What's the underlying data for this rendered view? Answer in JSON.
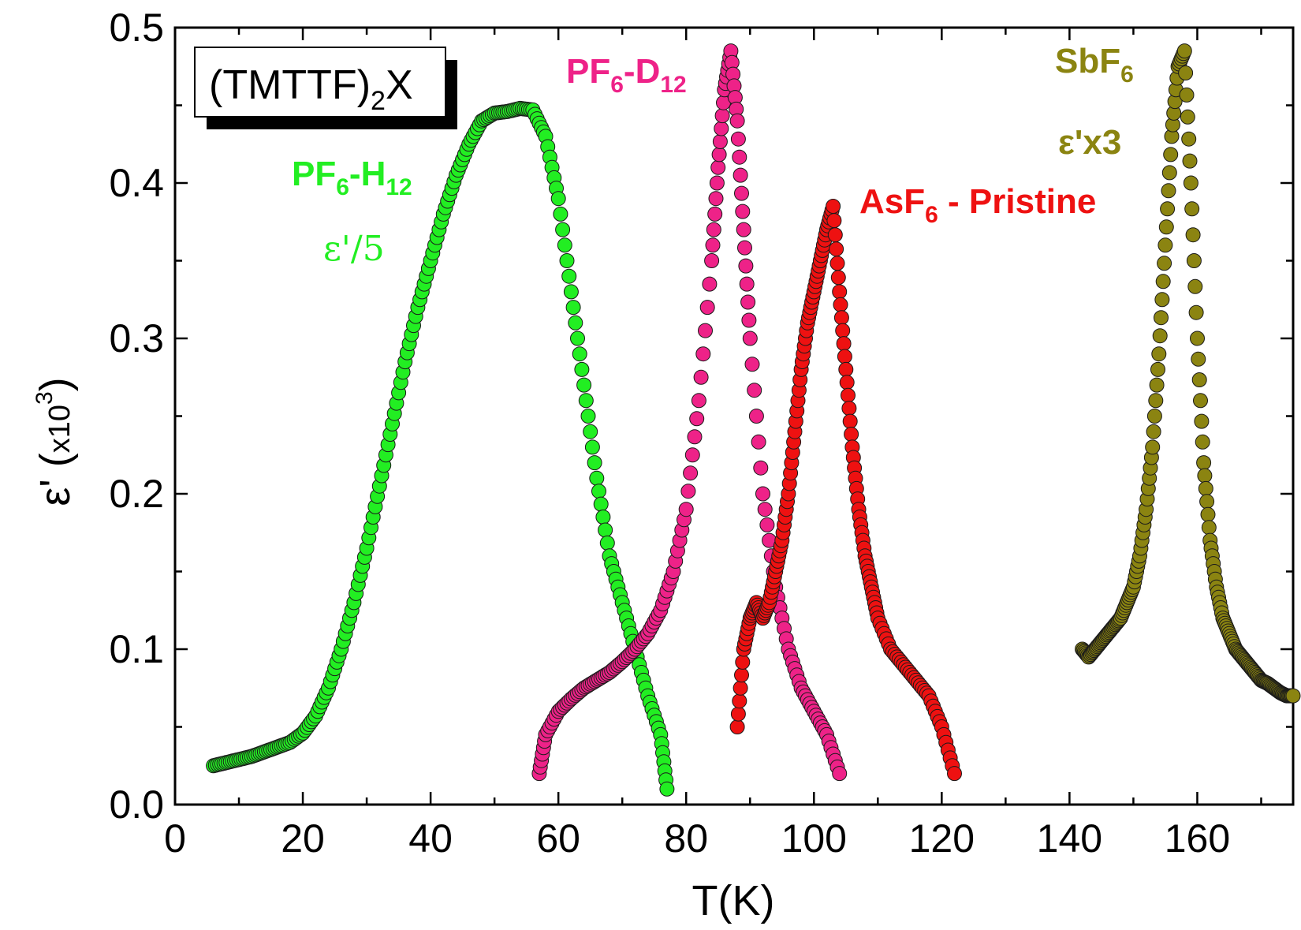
{
  "chart_data": {
    "type": "scatter",
    "xlabel": "T(K)",
    "ylabel_main": "ε' (",
    "ylabel_mult": "x10",
    "ylabel_exp": "3",
    "ylabel_close": ")",
    "xlim": [
      0,
      175
    ],
    "ylim": [
      0,
      0.5
    ],
    "xticks": [
      0,
      20,
      40,
      60,
      80,
      100,
      120,
      140,
      160
    ],
    "xtick_labels": [
      "0",
      "20",
      "40",
      "60",
      "80",
      "100",
      "120",
      "140",
      "160"
    ],
    "yticks": [
      0.0,
      0.1,
      0.2,
      0.3,
      0.4,
      0.5
    ],
    "ytick_labels": [
      "0.0",
      "0.1",
      "0.2",
      "0.3",
      "0.4",
      "0.5"
    ],
    "box_label": {
      "main": "(TMTTF)",
      "sub": "2",
      "tail": "X"
    },
    "series": [
      {
        "key": "pf6h",
        "color": "#22ee22",
        "label": {
          "a": "PF",
          "b": "6",
          "c": "-H",
          "d": "12",
          "note": "ε'/5"
        },
        "x": [
          6,
          8,
          10,
          12,
          14,
          16,
          18,
          20,
          22,
          24,
          26,
          28,
          30,
          32,
          34,
          36,
          38,
          40,
          42,
          44,
          46,
          48,
          50,
          52,
          54,
          56,
          58,
          60,
          62,
          64,
          66,
          68,
          70,
          72,
          74,
          76,
          77
        ],
        "y": [
          0.025,
          0.027,
          0.029,
          0.031,
          0.034,
          0.037,
          0.04,
          0.046,
          0.057,
          0.075,
          0.1,
          0.13,
          0.165,
          0.205,
          0.245,
          0.285,
          0.32,
          0.35,
          0.38,
          0.405,
          0.425,
          0.44,
          0.445,
          0.446,
          0.448,
          0.447,
          0.43,
          0.39,
          0.33,
          0.27,
          0.21,
          0.16,
          0.13,
          0.1,
          0.07,
          0.045,
          0.01
        ]
      },
      {
        "key": "pf6d",
        "color": "#ee2288",
        "label": {
          "a": "PF",
          "b": "6",
          "c": "-D",
          "d": "12",
          "note": ""
        },
        "x": [
          57,
          58,
          60,
          62,
          64,
          66,
          68,
          70,
          72,
          74,
          76,
          78,
          80,
          82,
          84,
          85,
          86,
          87,
          88,
          89,
          90,
          92,
          94,
          96,
          98,
          100,
          102,
          104
        ],
        "y": [
          0.02,
          0.045,
          0.06,
          0.068,
          0.075,
          0.08,
          0.085,
          0.092,
          0.1,
          0.11,
          0.125,
          0.15,
          0.19,
          0.26,
          0.35,
          0.41,
          0.46,
          0.485,
          0.44,
          0.37,
          0.3,
          0.2,
          0.14,
          0.1,
          0.075,
          0.06,
          0.045,
          0.02
        ]
      },
      {
        "key": "asf6",
        "color": "#ee1111",
        "label": {
          "a": "AsF",
          "b": "6",
          "c": " - Pristine",
          "d": "",
          "note": ""
        },
        "x": [
          88,
          89,
          90,
          91,
          92,
          93,
          94,
          95,
          96,
          97,
          98,
          99,
          100,
          101,
          102,
          103,
          104,
          105,
          106,
          107,
          108,
          109,
          110,
          112,
          114,
          116,
          118,
          120,
          122
        ],
        "y": [
          0.05,
          0.1,
          0.12,
          0.13,
          0.12,
          0.13,
          0.15,
          0.17,
          0.2,
          0.24,
          0.28,
          0.31,
          0.33,
          0.35,
          0.37,
          0.385,
          0.33,
          0.28,
          0.23,
          0.19,
          0.16,
          0.14,
          0.12,
          0.1,
          0.09,
          0.08,
          0.07,
          0.05,
          0.02
        ]
      },
      {
        "key": "sbf6",
        "color": "#8b8411",
        "label": {
          "a": "SbF",
          "b": "6",
          "c": "",
          "d": "",
          "note": "ε'x3"
        },
        "x": [
          142,
          143,
          144,
          145,
          146,
          147,
          148,
          149,
          150,
          151,
          152,
          153,
          154,
          155,
          156,
          157,
          158,
          159,
          160,
          161,
          162,
          163,
          164,
          165,
          166,
          167,
          168,
          169,
          170,
          171,
          172,
          173,
          174,
          175
        ],
        "y": [
          0.1,
          0.095,
          0.1,
          0.105,
          0.11,
          0.115,
          0.12,
          0.13,
          0.14,
          0.16,
          0.19,
          0.23,
          0.29,
          0.36,
          0.43,
          0.475,
          0.485,
          0.4,
          0.3,
          0.22,
          0.17,
          0.14,
          0.12,
          0.11,
          0.1,
          0.095,
          0.09,
          0.085,
          0.08,
          0.078,
          0.075,
          0.072,
          0.07,
          0.07
        ]
      }
    ]
  }
}
